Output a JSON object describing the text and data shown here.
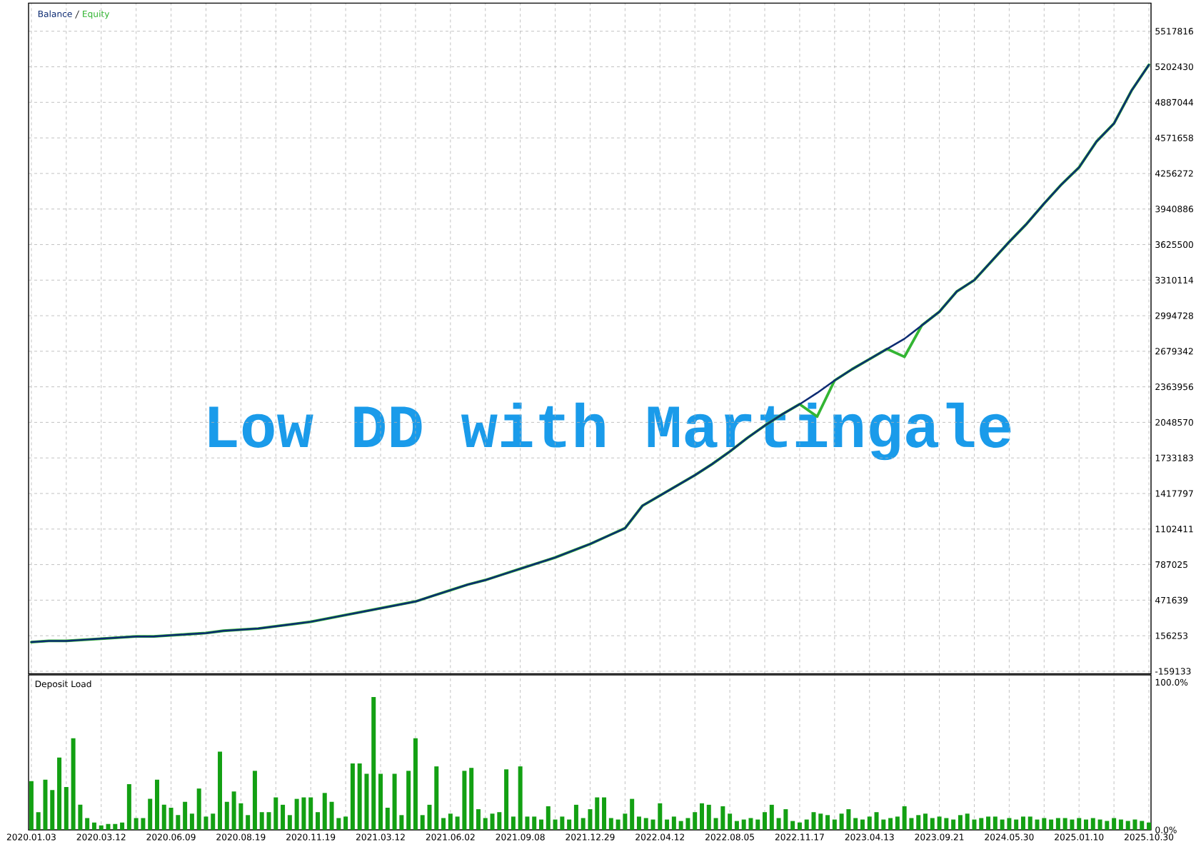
{
  "chart_data": [
    {
      "type": "line",
      "ylim": [
        -181000,
        5767000
      ],
      "categories": [
        "2020.01.03",
        null,
        null,
        null,
        "2020.03.12",
        null,
        null,
        null,
        "2020.06.09",
        null,
        null,
        null,
        "2020.08.19",
        null,
        null,
        null,
        "2020.11.19",
        null,
        null,
        null,
        "2021.03.12",
        null,
        null,
        null,
        "2021.06.02",
        null,
        null,
        null,
        "2021.09.08",
        null,
        null,
        null,
        "2021.12.29",
        null,
        null,
        null,
        "2022.04.12",
        null,
        null,
        null,
        "2022.08.05",
        null,
        null,
        null,
        "2022.11.17",
        null,
        null,
        null,
        "2023.04.13",
        null,
        null,
        null,
        "2023.09.21",
        null,
        null,
        null,
        "2024.05.30",
        null,
        null,
        null,
        "2025.01.10",
        null,
        null,
        null,
        "2025.10.30"
      ],
      "yticks": [
        -159133,
        156253,
        471639,
        787025,
        1102411,
        1417797,
        1733183,
        2048570,
        2363956,
        2679342,
        2994728,
        3310114,
        3625500,
        3940886,
        4256272,
        4571658,
        4887044,
        5202430,
        5517816
      ],
      "tick_labels": "y",
      "grid": true,
      "legend": "top left",
      "annotations": [
        "Low DD with Martingale"
      ],
      "series": [
        {
          "name": "Balance",
          "color": "#0c2b72",
          "values": [
            100000,
            110000,
            110000,
            120000,
            130000,
            140000,
            150000,
            150000,
            160000,
            170000,
            180000,
            200000,
            210000,
            220000,
            240000,
            260000,
            280000,
            310000,
            340000,
            370000,
            400000,
            430000,
            460000,
            510000,
            560000,
            610000,
            650000,
            700000,
            750000,
            800000,
            850000,
            910000,
            970000,
            1040000,
            1110000,
            1310000,
            1400000,
            1490000,
            1580000,
            1680000,
            1790000,
            1910000,
            2020000,
            2120000,
            2210000,
            2310000,
            2420000,
            2520000,
            2610000,
            2700000,
            2790000,
            2910000,
            3030000,
            3210000,
            3310000,
            3480000,
            3650000,
            3810000,
            3990000,
            4160000,
            4310000,
            4540000,
            4700000,
            4990000,
            5220000
          ]
        },
        {
          "name": "Equity",
          "color": "#33b533",
          "values": [
            100000,
            110000,
            110000,
            120000,
            130000,
            140000,
            150000,
            150000,
            160000,
            170000,
            180000,
            200000,
            210000,
            220000,
            240000,
            260000,
            280000,
            310000,
            340000,
            370000,
            400000,
            430000,
            460000,
            510000,
            560000,
            610000,
            650000,
            700000,
            750000,
            800000,
            850000,
            910000,
            970000,
            1040000,
            1110000,
            1310000,
            1400000,
            1490000,
            1580000,
            1680000,
            1790000,
            1910000,
            2020000,
            2120000,
            2210000,
            2100000,
            2420000,
            2520000,
            2610000,
            2700000,
            2630000,
            2910000,
            3030000,
            3210000,
            3310000,
            3480000,
            3650000,
            3810000,
            3990000,
            4160000,
            4310000,
            4540000,
            4700000,
            4990000,
            5220000
          ]
        }
      ]
    },
    {
      "type": "bar",
      "title": "Deposit Load",
      "ylim": [
        0,
        105
      ],
      "categories": [
        "2020.01.03",
        null,
        null,
        null,
        null,
        null,
        null,
        null,
        null,
        null,
        "2020.03.12",
        null,
        null,
        null,
        null,
        null,
        null,
        null,
        null,
        null,
        "2020.06.09",
        null,
        null,
        null,
        null,
        null,
        null,
        null,
        null,
        null,
        "2020.08.19",
        null,
        null,
        null,
        null,
        null,
        null,
        null,
        null,
        null,
        "2020.11.19",
        null,
        null,
        null,
        null,
        null,
        null,
        null,
        null,
        null,
        "2021.03.12",
        null,
        null,
        null,
        null,
        null,
        null,
        null,
        null,
        null,
        "2021.06.02",
        null,
        null,
        null,
        null,
        null,
        null,
        null,
        null,
        null,
        "2021.09.08",
        null,
        null,
        null,
        null,
        null,
        null,
        null,
        null,
        null,
        "2021.12.29",
        null,
        null,
        null,
        null,
        null,
        null,
        null,
        null,
        null,
        "2022.04.12",
        null,
        null,
        null,
        null,
        null,
        null,
        null,
        null,
        null,
        "2022.08.05",
        null,
        null,
        null,
        null,
        null,
        null,
        null,
        null,
        null,
        "2022.11.17",
        null,
        null,
        null,
        null,
        null,
        null,
        null,
        null,
        null,
        "2023.04.13",
        null,
        null,
        null,
        null,
        null,
        null,
        null,
        null,
        null,
        "2023.09.21",
        null,
        null,
        null,
        null,
        null,
        null,
        null,
        null,
        null,
        "2024.05.30",
        null,
        null,
        null,
        null,
        null,
        null,
        null,
        null,
        null,
        "2025.01.10",
        null,
        null,
        null,
        null,
        null,
        null,
        null,
        null,
        null,
        "2025.10.30"
      ],
      "yticks": [
        {
          "value": 0,
          "label": "0.0%"
        },
        {
          "value": 100,
          "label": "100.0%"
        }
      ],
      "grid": "x",
      "color": "#13a013",
      "values": [
        33,
        12,
        34,
        27,
        49,
        29,
        62,
        17,
        8,
        5,
        3,
        4,
        4,
        5,
        31,
        8,
        8,
        21,
        34,
        17,
        15,
        10,
        19,
        11,
        28,
        9,
        11,
        53,
        19,
        26,
        18,
        10,
        40,
        12,
        12,
        22,
        17,
        10,
        21,
        22,
        22,
        12,
        25,
        19,
        8,
        9,
        45,
        45,
        38,
        90,
        38,
        15,
        38,
        10,
        40,
        62,
        10,
        17,
        43,
        8,
        11,
        9,
        40,
        42,
        14,
        8,
        11,
        12,
        41,
        9,
        43,
        9,
        9,
        7,
        16,
        7,
        9,
        7,
        17,
        8,
        14,
        22,
        22,
        8,
        7,
        11,
        21,
        9,
        8,
        7,
        18,
        7,
        9,
        6,
        8,
        12,
        18,
        17,
        8,
        16,
        11,
        6,
        7,
        8,
        7,
        12,
        17,
        8,
        14,
        6,
        5,
        7,
        12,
        11,
        10,
        7,
        11,
        14,
        8,
        7,
        9,
        12,
        7,
        8,
        9,
        16,
        8,
        10,
        11,
        8,
        9,
        8,
        7,
        10,
        11,
        7,
        8,
        9,
        9,
        7,
        8,
        7,
        9,
        9,
        7,
        8,
        7,
        8,
        8,
        7,
        8,
        7,
        8,
        7,
        6,
        8,
        7,
        6,
        7,
        6,
        5
      ]
    }
  ]
}
